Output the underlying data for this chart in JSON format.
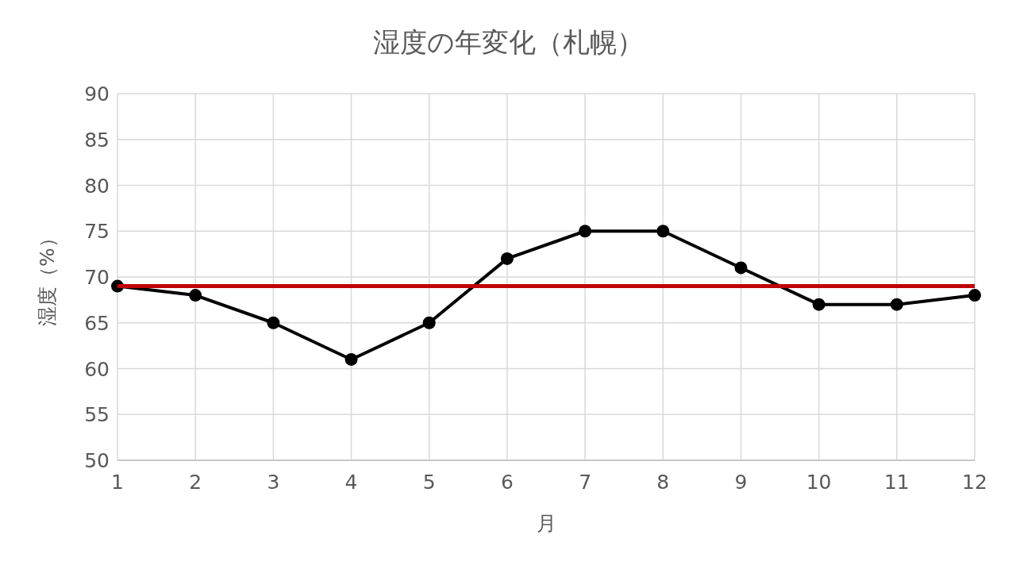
{
  "chart_data": {
    "type": "line",
    "title": "湿度の年変化（札幌）",
    "xlabel": "月",
    "ylabel": "湿度（%）",
    "x": [
      1,
      2,
      3,
      4,
      5,
      6,
      7,
      8,
      9,
      10,
      11,
      12
    ],
    "xlim": [
      1,
      12
    ],
    "xticks": [
      1,
      2,
      3,
      4,
      5,
      6,
      7,
      8,
      9,
      10,
      11,
      12
    ],
    "ylim": [
      50,
      90
    ],
    "yticks": [
      50,
      55,
      60,
      65,
      70,
      75,
      80,
      85,
      90
    ],
    "grid": true,
    "marker": "circle",
    "line_style": "solid",
    "series": [
      {
        "color": "#000000",
        "values": [
          69,
          68,
          65,
          61,
          65,
          72,
          75,
          75,
          71,
          67,
          67,
          68
        ]
      }
    ],
    "ref_lines": [
      {
        "axis": "y",
        "value": 69,
        "color": "#c00000"
      }
    ]
  }
}
